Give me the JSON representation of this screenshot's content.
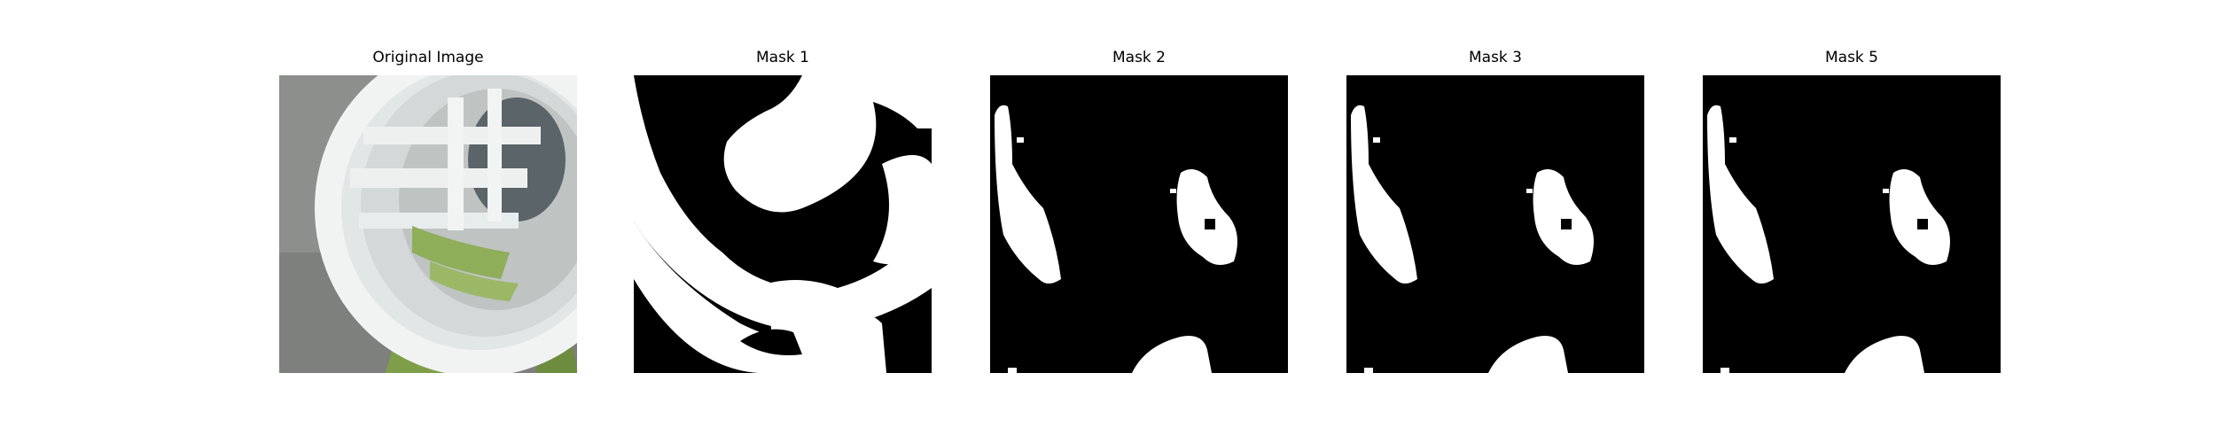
{
  "figure": {
    "panels": [
      {
        "title": "Original Image",
        "kind": "photo"
      },
      {
        "title": "Mask 1",
        "kind": "mask"
      },
      {
        "title": "Mask 2",
        "kind": "mask"
      },
      {
        "title": "Mask 3",
        "kind": "mask"
      },
      {
        "title": "Mask 5",
        "kind": "mask"
      }
    ]
  },
  "colors": {
    "mask_background": "#000000",
    "mask_foreground": "#ffffff",
    "photo_plastic": "#e6e8e8",
    "photo_ground": "#8a8d8a",
    "photo_leaf": "#7f9e4a"
  }
}
